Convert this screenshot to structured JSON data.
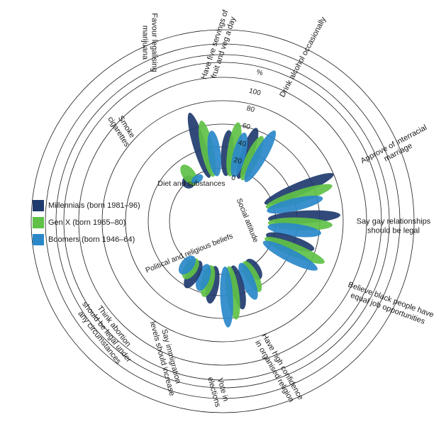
{
  "chart_data": {
    "type": "radial-bar",
    "unit_label": "%",
    "r_ticks": [
      0,
      20,
      40,
      60,
      80,
      100
    ],
    "rlim": [
      0,
      100
    ],
    "series": [
      {
        "name": "Millennials (born 1981–96)",
        "color": "#1f3b6e"
      },
      {
        "name": "Gen X (born 1965–80)",
        "color": "#5fc146"
      },
      {
        "name": "Boomers (born 1946–64)",
        "color": "#2a88c9"
      }
    ],
    "groups": [
      {
        "name": "Diet and substances"
      },
      {
        "name": "Social attitude"
      },
      {
        "name": "Political and religious beliefs"
      }
    ],
    "categories": [
      {
        "label": "Drink alcohol occasionally",
        "values": [
          64,
          58,
          70
        ]
      },
      {
        "label": "Have five servings of fruit and veg a day",
        "values": [
          55,
          65,
          55
        ]
      },
      {
        "label": "Favour legalising marijuana",
        "values": [
          80,
          68,
          55
        ]
      },
      {
        "label": "Smoke cigarettes",
        "values": [
          18,
          30,
          12
        ]
      },
      {
        "label": "Approve of interracial marriage",
        "values": [
          88,
          82,
          68
        ]
      },
      {
        "label": "Say gay relationships should be legal",
        "values": [
          85,
          76,
          64
        ]
      },
      {
        "label": "Believe black people have equal job opportunities",
        "values": [
          60,
          76,
          72
        ]
      },
      {
        "label": "Have high confidence in organised religion",
        "values": [
          30,
          42,
          48
        ]
      },
      {
        "label": "Vote in elections",
        "values": [
          54,
          64,
          72
        ]
      },
      {
        "label": "Say immigration levels should increase",
        "values": [
          46,
          40,
          35
        ]
      },
      {
        "label": "Think abortion should be legal under any circumstances",
        "values": [
          38,
          30,
          28
        ]
      }
    ]
  }
}
